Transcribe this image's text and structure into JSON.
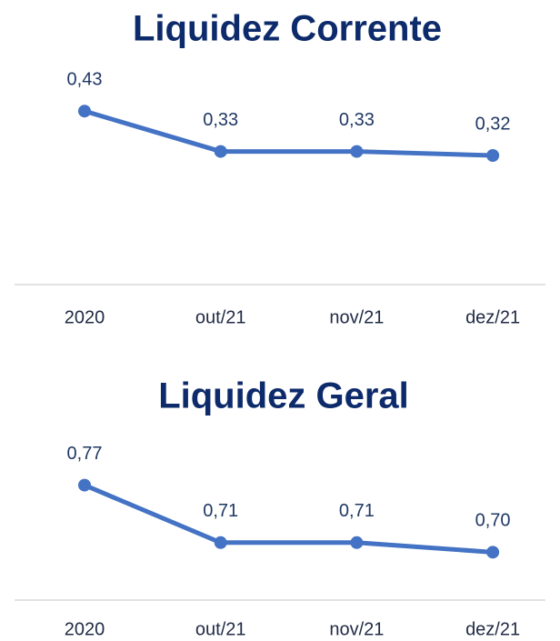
{
  "chart_data": [
    {
      "type": "line",
      "title": "Liquidez Corrente",
      "categories": [
        "2020",
        "out/21",
        "nov/21",
        "dez/21"
      ],
      "series": [
        {
          "color": "#4472c4",
          "values": [
            0.43,
            0.33,
            0.33,
            0.32
          ],
          "value_labels": [
            "0,43",
            "0,33",
            "0,33",
            "0,32"
          ]
        }
      ],
      "ylim": [
        0,
        0.48
      ]
    },
    {
      "type": "line",
      "title": "Liquidez Geral",
      "categories": [
        "2020",
        "out/21",
        "nov/21",
        "dez/21"
      ],
      "series": [
        {
          "color": "#4472c4",
          "values": [
            0.77,
            0.71,
            0.71,
            0.7
          ],
          "value_labels": [
            "0,77",
            "0,71",
            "0,71",
            "0,70"
          ]
        }
      ],
      "ylim": [
        0.65,
        0.8
      ]
    }
  ]
}
